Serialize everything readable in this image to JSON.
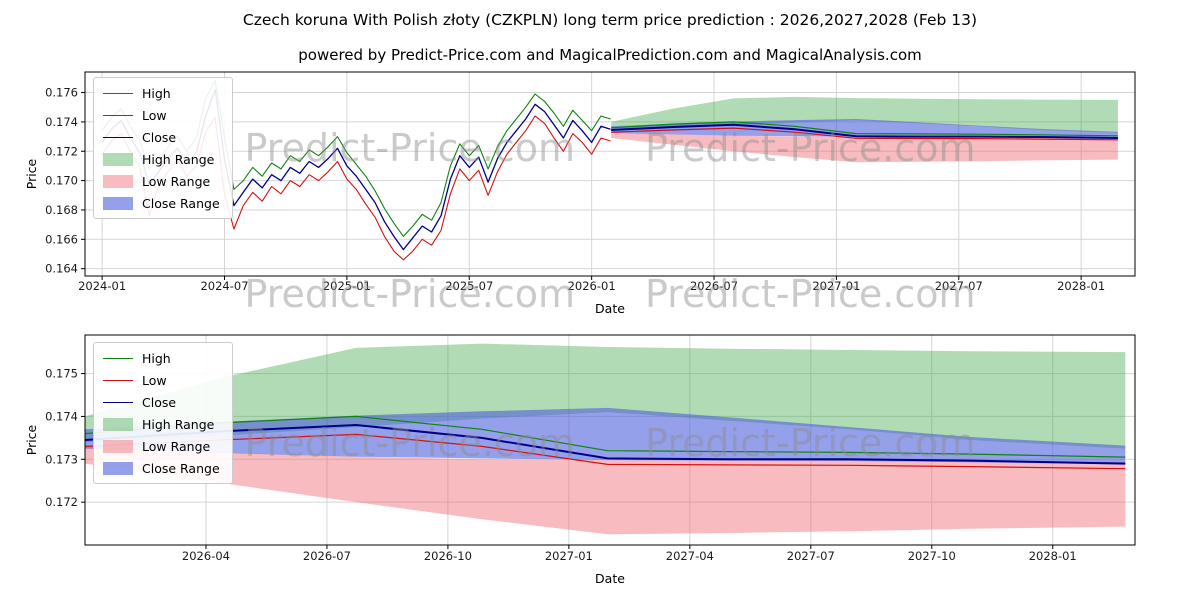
{
  "header": {
    "title": "Czech koruna With Polish złoty (CZKPLN) long term price prediction : 2026,2027,2028 (Feb 13)",
    "subtitle": "powered by Predict-Price.com and MagicalPrediction.com and MagicalAnalysis.com"
  },
  "watermark": {
    "text": "Predict-Price.com"
  },
  "colors": {
    "high_line": "#128212",
    "low_line": "#d41111",
    "close_line": "#00008b",
    "high_band": "rgba(60,165,70,0.40)",
    "low_band": "rgba(238,95,105,0.42)",
    "close_band": "rgba(72,92,220,0.58)",
    "grid": "#d5d5d5",
    "spine": "#000000",
    "text": "#1a1a1a"
  },
  "legend": [
    {
      "label": "High",
      "swatch": "line",
      "color": "#128212"
    },
    {
      "label": "Low",
      "swatch": "line",
      "color": "#d41111"
    },
    {
      "label": "Close",
      "swatch": "line",
      "color": "#00008b"
    },
    {
      "label": "High Range",
      "swatch": "patch",
      "color": "rgba(60,165,70,0.40)"
    },
    {
      "label": "Low Range",
      "swatch": "patch",
      "color": "rgba(238,95,105,0.42)"
    },
    {
      "label": "Close Range",
      "swatch": "patch",
      "color": "rgba(72,92,220,0.58)"
    }
  ],
  "chart_data": [
    {
      "type": "line",
      "name": "long-term-history-and-forecast",
      "title": "Czech koruna With Polish złoty (CZKPLN) long term price prediction : 2026,2027,2028 (Feb 13)",
      "xlabel": "Date",
      "ylabel": "Price",
      "xlim": [
        2023.93,
        2028.22
      ],
      "ylim": [
        0.1635,
        0.1774
      ],
      "xtick_vals": [
        2024.0,
        2024.5,
        2025.0,
        2025.5,
        2026.0,
        2026.5,
        2027.0,
        2027.5,
        2028.0
      ],
      "xtick_labels": [
        "2024-01",
        "2024-07",
        "2025-01",
        "2025-07",
        "2026-01",
        "2026-07",
        "2027-01",
        "2027-07",
        "2028-01"
      ],
      "ytick_vals": [
        0.164,
        0.166,
        0.168,
        0.17,
        0.172,
        0.174,
        0.176
      ],
      "ytick_labels": [
        "0.164",
        "0.166",
        "0.168",
        "0.170",
        "0.172",
        "0.174",
        "0.176"
      ],
      "series_history": {
        "x_start": 2024.0,
        "x_step": 0.03846,
        "high": [
          0.1734,
          0.1743,
          0.1749,
          0.1737,
          0.1727,
          0.1708,
          0.1714,
          0.1723,
          0.173,
          0.172,
          0.1729,
          0.1756,
          0.1768,
          0.1729,
          0.1694,
          0.17,
          0.1709,
          0.1703,
          0.1712,
          0.1708,
          0.1717,
          0.1713,
          0.1721,
          0.1717,
          0.1723,
          0.173,
          0.1719,
          0.1711,
          0.1703,
          0.1693,
          0.1681,
          0.1671,
          0.1662,
          0.1669,
          0.1677,
          0.1673,
          0.1685,
          0.171,
          0.1725,
          0.1717,
          0.1724,
          0.1708,
          0.1723,
          0.1734,
          0.1742,
          0.175,
          0.1759,
          0.1754,
          0.1746,
          0.1737,
          0.1748,
          0.1741,
          0.1734,
          0.1744,
          0.1742
        ],
        "low": [
          0.1718,
          0.1727,
          0.1732,
          0.172,
          0.1709,
          0.1676,
          0.1697,
          0.1706,
          0.1714,
          0.1703,
          0.171,
          0.1733,
          0.1743,
          0.1691,
          0.1667,
          0.1683,
          0.1692,
          0.1686,
          0.1696,
          0.1691,
          0.17,
          0.1696,
          0.1704,
          0.17,
          0.1706,
          0.1713,
          0.1701,
          0.1694,
          0.1684,
          0.1675,
          0.1662,
          0.1652,
          0.1646,
          0.1652,
          0.166,
          0.1656,
          0.1666,
          0.1691,
          0.1708,
          0.17,
          0.1707,
          0.169,
          0.1706,
          0.1718,
          0.1726,
          0.1734,
          0.1744,
          0.1739,
          0.1729,
          0.172,
          0.1732,
          0.1726,
          0.1718,
          0.1729,
          0.1727
        ],
        "close": [
          0.1726,
          0.1735,
          0.1741,
          0.1729,
          0.1719,
          0.1697,
          0.1706,
          0.1715,
          0.1722,
          0.1712,
          0.1719,
          0.1744,
          0.1762,
          0.1715,
          0.1683,
          0.1692,
          0.1701,
          0.1695,
          0.1704,
          0.17,
          0.1709,
          0.1705,
          0.1713,
          0.1709,
          0.1715,
          0.1722,
          0.171,
          0.1703,
          0.1694,
          0.1685,
          0.1672,
          0.1662,
          0.1653,
          0.1661,
          0.1669,
          0.1665,
          0.1676,
          0.1701,
          0.1717,
          0.1709,
          0.1716,
          0.1699,
          0.1715,
          0.1726,
          0.1734,
          0.1742,
          0.1752,
          0.1747,
          0.1738,
          0.1729,
          0.1741,
          0.1734,
          0.1726,
          0.1737,
          0.1735
        ]
      },
      "forecast": {
        "x": [
          2026.08,
          2026.33,
          2026.58,
          2026.83,
          2027.08,
          2027.33,
          2027.58,
          2027.83,
          2028.15
        ],
        "high": [
          0.1736,
          0.17385,
          0.174,
          0.1737,
          0.1732,
          0.17318,
          0.17316,
          0.17312,
          0.17305
        ],
        "low": [
          0.1733,
          0.17345,
          0.17358,
          0.1733,
          0.17288,
          0.17287,
          0.17286,
          0.17283,
          0.17278
        ],
        "close": [
          0.17345,
          0.17365,
          0.1738,
          0.1735,
          0.17302,
          0.173,
          0.173,
          0.17297,
          0.1729
        ],
        "high_range_upper": [
          0.174,
          0.1749,
          0.1756,
          0.1757,
          0.17562,
          0.17558,
          0.17555,
          0.17552,
          0.1755
        ],
        "high_range_lower": [
          0.1734,
          0.17355,
          0.17375,
          0.17395,
          0.1741,
          0.1739,
          0.1737,
          0.17345,
          0.17325
        ],
        "low_range_upper": [
          0.1733,
          0.17316,
          0.17306,
          0.173,
          0.17298,
          0.17298,
          0.17298,
          0.17296,
          0.17294
        ],
        "low_range_lower": [
          0.1729,
          0.17245,
          0.172,
          0.1716,
          0.17125,
          0.17128,
          0.17132,
          0.17138,
          0.17143
        ],
        "close_range_upper": [
          0.1737,
          0.17387,
          0.17402,
          0.17412,
          0.1742,
          0.17398,
          0.17375,
          0.17352,
          0.17332
        ],
        "close_range_lower": [
          0.17325,
          0.17315,
          0.17306,
          0.17302,
          0.17298,
          0.17297,
          0.17296,
          0.17293,
          0.17288
        ]
      }
    },
    {
      "type": "line",
      "name": "forecast-zoom",
      "title": "",
      "xlabel": "Date",
      "ylabel": "Price",
      "xlim": [
        2026.0,
        2028.17
      ],
      "ylim": [
        0.171,
        0.1759
      ],
      "xtick_vals": [
        2026.25,
        2026.5,
        2026.75,
        2027.0,
        2027.25,
        2027.5,
        2027.75,
        2028.0
      ],
      "xtick_labels": [
        "2026-04",
        "2026-07",
        "2026-10",
        "2027-01",
        "2027-04",
        "2027-07",
        "2027-10",
        "2028-01"
      ],
      "ytick_vals": [
        0.172,
        0.173,
        0.174,
        0.175
      ],
      "ytick_labels": [
        "0.172",
        "0.173",
        "0.174",
        "0.175"
      ],
      "forecast": {
        "x": [
          2026.0,
          2026.28,
          2026.56,
          2026.82,
          2027.08,
          2027.33,
          2027.58,
          2027.83,
          2028.15
        ],
        "high": [
          0.1736,
          0.17385,
          0.174,
          0.1737,
          0.1732,
          0.17318,
          0.17316,
          0.17312,
          0.17305
        ],
        "low": [
          0.1733,
          0.17345,
          0.17358,
          0.1733,
          0.17288,
          0.17287,
          0.17286,
          0.17283,
          0.17278
        ],
        "close": [
          0.17345,
          0.17365,
          0.1738,
          0.1735,
          0.17302,
          0.173,
          0.173,
          0.17297,
          0.1729
        ],
        "high_range_upper": [
          0.174,
          0.1749,
          0.1756,
          0.1757,
          0.17562,
          0.17558,
          0.17555,
          0.17552,
          0.1755
        ],
        "high_range_lower": [
          0.1734,
          0.17355,
          0.17375,
          0.17395,
          0.1741,
          0.1739,
          0.1737,
          0.17345,
          0.17325
        ],
        "low_range_upper": [
          0.1733,
          0.17316,
          0.17306,
          0.173,
          0.17298,
          0.17298,
          0.17298,
          0.17296,
          0.17294
        ],
        "low_range_lower": [
          0.1729,
          0.17245,
          0.172,
          0.1716,
          0.17125,
          0.17128,
          0.17132,
          0.17138,
          0.17143
        ],
        "close_range_upper": [
          0.1737,
          0.17387,
          0.17402,
          0.17412,
          0.1742,
          0.17398,
          0.17375,
          0.17352,
          0.17332
        ],
        "close_range_lower": [
          0.17325,
          0.17315,
          0.17306,
          0.17302,
          0.17298,
          0.17297,
          0.17296,
          0.17293,
          0.17288
        ]
      }
    }
  ]
}
